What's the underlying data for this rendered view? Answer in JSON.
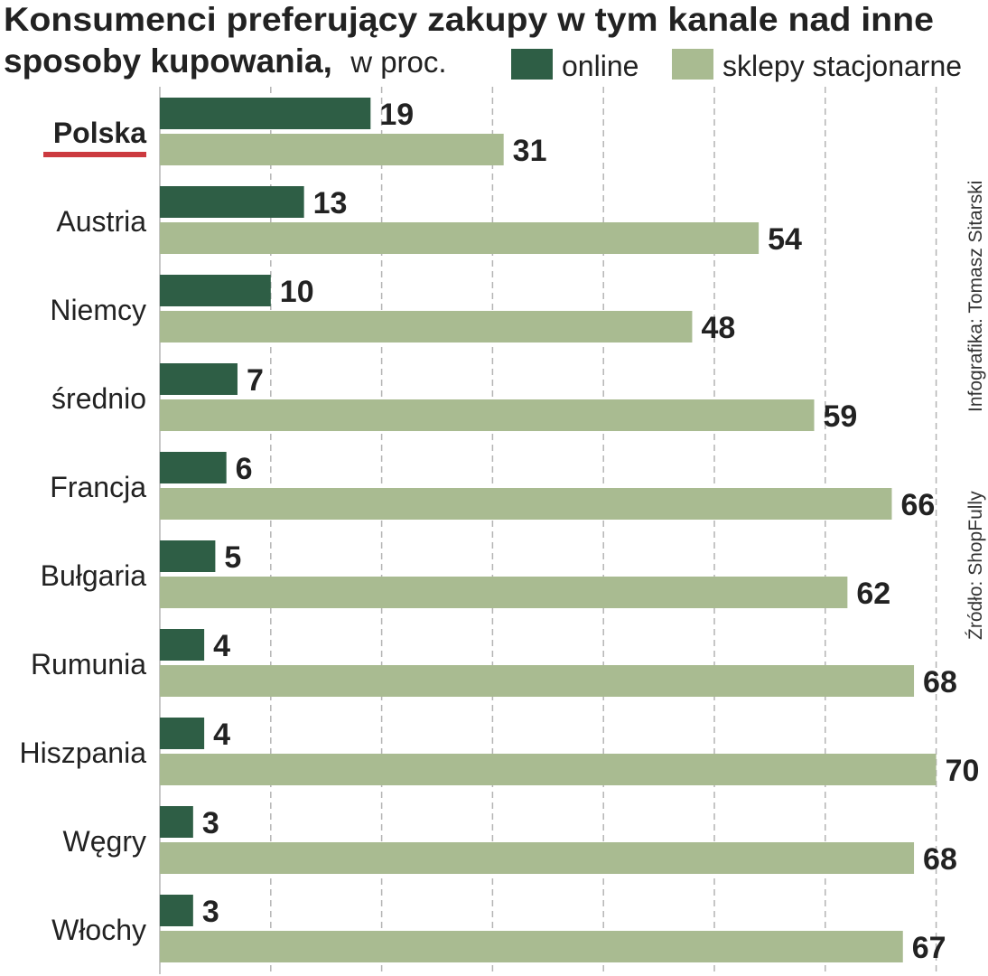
{
  "chart_data": {
    "type": "bar",
    "orientation": "horizontal",
    "title": "Konsumenci preferujący zakupy w tym kanale nad inne sposoby kupowania,",
    "title_line1": "Konsumenci preferujący zakupy w tym kanale nad inne",
    "title_line2": "sposoby kupowania,",
    "subtitle": "w proc.",
    "categories": [
      "Polska",
      "Austria",
      "Niemcy",
      "średnio",
      "Francja",
      "Bułgaria",
      "Rumunia",
      "Hiszpania",
      "Węgry",
      "Włochy"
    ],
    "highlight_category": "Polska",
    "series": [
      {
        "name": "online",
        "color": "#2e5e45",
        "values": [
          19,
          13,
          10,
          7,
          6,
          5,
          4,
          4,
          3,
          3
        ]
      },
      {
        "name": "sklepy stacjonarne",
        "color": "#a9bb91",
        "values": [
          31,
          54,
          48,
          59,
          66,
          62,
          68,
          70,
          68,
          67
        ]
      }
    ],
    "xlim": [
      0,
      70
    ],
    "grid": "vertical dashed",
    "legend_position": "top-right",
    "highlight_color": "#cc3a3f",
    "credits": {
      "infographic": "Infografika: Tomasz Sitarski",
      "source": "Źródło: ShopFully"
    }
  }
}
